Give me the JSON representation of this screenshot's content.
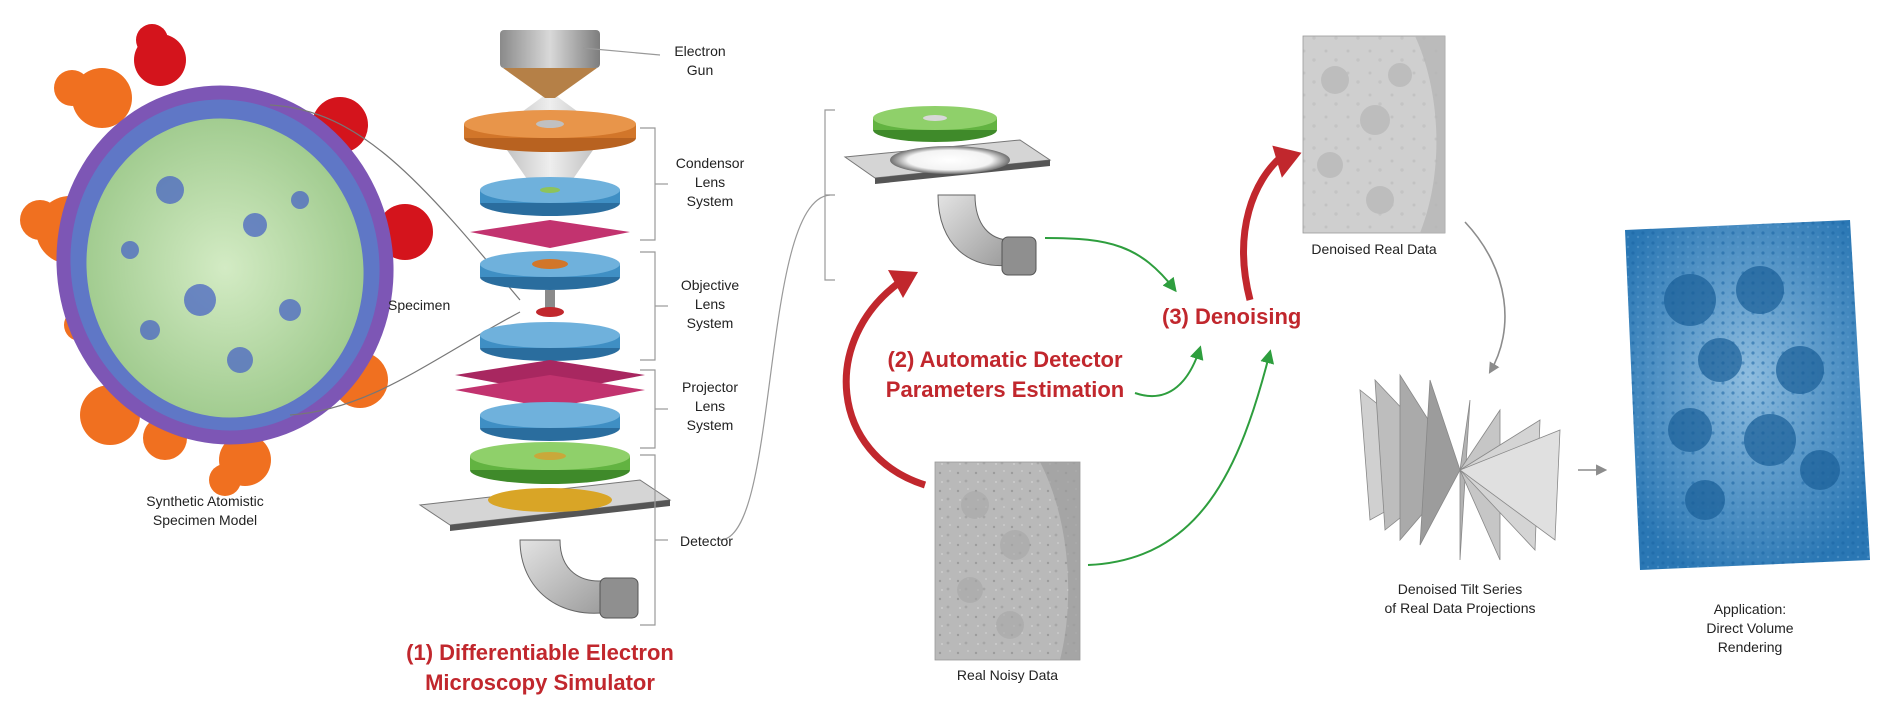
{
  "labels": {
    "electron_gun": [
      "Electron",
      "Gun"
    ],
    "condensor": [
      "Condensor",
      "Lens",
      "System"
    ],
    "objective": [
      "Objective",
      "Lens",
      "System"
    ],
    "projector": [
      "Projector",
      "Lens",
      "System"
    ],
    "detector": "Detector",
    "specimen": "Specimen",
    "specimen_model": [
      "Synthetic Atomistic",
      "Specimen Model"
    ],
    "real_noisy": "Real Noisy Data",
    "denoised_real": "Denoised Real Data",
    "tilt_series": [
      "Denoised Tilt Series",
      "of Real Data Projections"
    ],
    "application": [
      "Application:",
      "Direct Volume",
      "Rendering"
    ]
  },
  "steps": {
    "step1": [
      "(1) Differentiable Electron",
      "Microscopy Simulator"
    ],
    "step2": [
      "(2) Automatic Detector",
      "Parameters Estimation"
    ],
    "step3": "(3) Denoising"
  },
  "colors": {
    "accent_red": "#c1272d",
    "arrow_green": "#2e9e3e",
    "arrow_gray": "#8c8c8c",
    "lens_blue": "#3f8fc4",
    "aperture_magenta": "#c2336f",
    "ring_orange": "#d2762a",
    "detector_green": "#62b341",
    "volume_blue": "#1f6fae",
    "virus_orange": "#f07020",
    "virus_red": "#d4141c",
    "membrane_purple": "#7d56b5",
    "core_green": "#b9dba6"
  }
}
